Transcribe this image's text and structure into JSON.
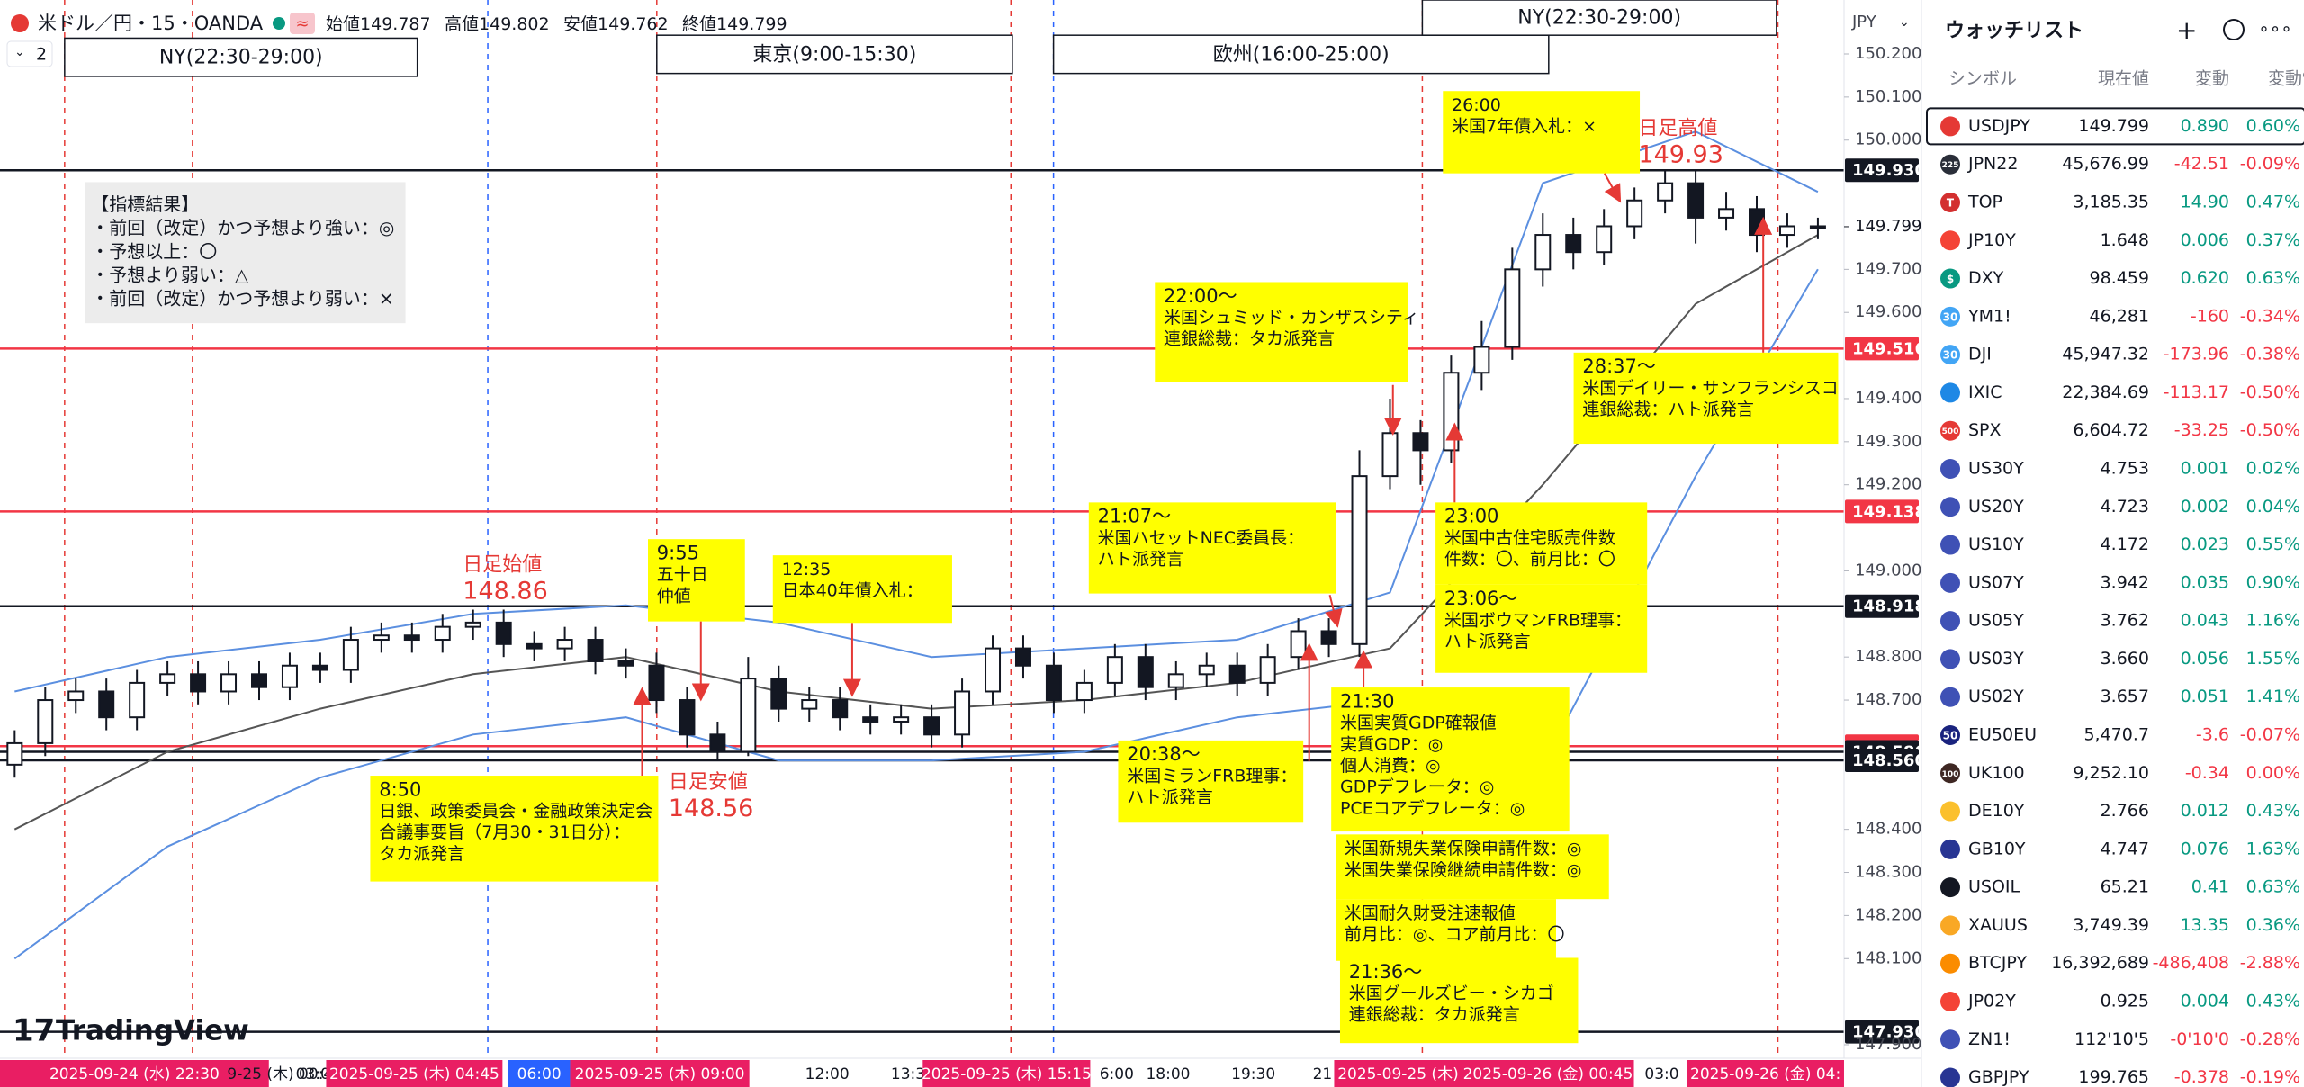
{
  "header": {
    "symbol": "米ドル／円・15・OANDA",
    "interval_count": "2",
    "ohlc": [
      {
        "label": "始値",
        "value": "149.787"
      },
      {
        "label": "高値",
        "value": "149.802"
      },
      {
        "label": "安値",
        "value": "149.762"
      },
      {
        "label": "終値",
        "value": "149.799"
      }
    ]
  },
  "sessions": [
    {
      "label": "NY(22:30-29:00)"
    },
    {
      "label": "東京(9:00-15:30)"
    },
    {
      "label": "欧州(16:00-25:00)"
    },
    {
      "label": "NY(22:30-29:00)"
    }
  ],
  "chart": {
    "currency": "JPY",
    "ylim": [
      147.9,
      150.2
    ],
    "yticks": [
      {
        "value": 150.2,
        "label": "150.200"
      },
      {
        "value": 150.1,
        "label": "150.100"
      },
      {
        "value": 150.0,
        "label": "150.000"
      },
      {
        "value": 149.7,
        "label": "149.700"
      },
      {
        "value": 149.6,
        "label": "149.600"
      },
      {
        "value": 149.4,
        "label": "149.400"
      },
      {
        "value": 149.3,
        "label": "149.300"
      },
      {
        "value": 149.2,
        "label": "149.200"
      },
      {
        "value": 149.0,
        "label": "149.000"
      },
      {
        "value": 148.8,
        "label": "148.800"
      },
      {
        "value": 148.7,
        "label": "148.700"
      },
      {
        "value": 148.4,
        "label": "148.400"
      },
      {
        "value": 148.3,
        "label": "148.300"
      },
      {
        "value": 148.2,
        "label": "148.200"
      },
      {
        "value": 148.1,
        "label": "148.100"
      },
      {
        "value": 147.9,
        "label": "147.900"
      }
    ],
    "last_price": {
      "value": 149.799,
      "label": "149.799"
    },
    "levels": [
      {
        "value": 149.93,
        "label": "149.930",
        "color": "#131722"
      },
      {
        "value": 149.516,
        "label": "149.516",
        "color": "#f23645"
      },
      {
        "value": 149.138,
        "label": "149.138",
        "color": "#f23645"
      },
      {
        "value": 148.918,
        "label": "148.918",
        "color": "#131722"
      },
      {
        "value": 148.593,
        "label": "148.593",
        "color": "#f23645"
      },
      {
        "value": 148.58,
        "label": "148.580",
        "color": "#131722"
      },
      {
        "value": 148.56,
        "label": "148.560",
        "color": "#131722"
      },
      {
        "value": 147.93,
        "label": "147.930",
        "color": "#131722"
      }
    ],
    "candles": [
      [
        148.55,
        148.63,
        148.52,
        148.6
      ],
      [
        148.6,
        148.73,
        148.57,
        148.7
      ],
      [
        148.7,
        148.75,
        148.67,
        148.72
      ],
      [
        148.72,
        148.75,
        148.63,
        148.66
      ],
      [
        148.66,
        148.77,
        148.63,
        148.74
      ],
      [
        148.74,
        148.79,
        148.71,
        148.76
      ],
      [
        148.76,
        148.79,
        148.69,
        148.72
      ],
      [
        148.72,
        148.79,
        148.69,
        148.76
      ],
      [
        148.76,
        148.79,
        148.7,
        148.73
      ],
      [
        148.73,
        148.81,
        148.7,
        148.78
      ],
      [
        148.78,
        148.81,
        148.74,
        148.77
      ],
      [
        148.77,
        148.87,
        148.74,
        148.84
      ],
      [
        148.84,
        148.88,
        148.81,
        148.85
      ],
      [
        148.85,
        148.88,
        148.81,
        148.84
      ],
      [
        148.84,
        148.9,
        148.81,
        148.87
      ],
      [
        148.87,
        148.91,
        148.84,
        148.88
      ],
      [
        148.88,
        148.91,
        148.8,
        148.83
      ],
      [
        148.83,
        148.86,
        148.79,
        148.82
      ],
      [
        148.82,
        148.87,
        148.79,
        148.84
      ],
      [
        148.84,
        148.87,
        148.76,
        148.79
      ],
      [
        148.79,
        148.82,
        148.75,
        148.78
      ],
      [
        148.78,
        148.81,
        148.67,
        148.7
      ],
      [
        148.7,
        148.73,
        148.59,
        148.62
      ],
      [
        148.62,
        148.65,
        148.56,
        148.58
      ],
      [
        148.58,
        148.8,
        148.57,
        148.75
      ],
      [
        148.75,
        148.78,
        148.65,
        148.68
      ],
      [
        148.68,
        148.73,
        148.65,
        148.7
      ],
      [
        148.7,
        148.73,
        148.63,
        148.66
      ],
      [
        148.66,
        148.69,
        148.62,
        148.65
      ],
      [
        148.65,
        148.69,
        148.62,
        148.66
      ],
      [
        148.66,
        148.69,
        148.59,
        148.62
      ],
      [
        148.62,
        148.75,
        148.59,
        148.72
      ],
      [
        148.72,
        148.85,
        148.69,
        148.82
      ],
      [
        148.82,
        148.85,
        148.75,
        148.78
      ],
      [
        148.78,
        148.81,
        148.67,
        148.7
      ],
      [
        148.7,
        148.77,
        148.67,
        148.74
      ],
      [
        148.74,
        148.83,
        148.71,
        148.8
      ],
      [
        148.8,
        148.83,
        148.7,
        148.73
      ],
      [
        148.73,
        148.79,
        148.7,
        148.76
      ],
      [
        148.76,
        148.81,
        148.73,
        148.78
      ],
      [
        148.78,
        148.81,
        148.71,
        148.74
      ],
      [
        148.74,
        148.83,
        148.71,
        148.8
      ],
      [
        148.8,
        148.89,
        148.77,
        148.86
      ],
      [
        148.86,
        148.89,
        148.8,
        148.83
      ],
      [
        148.83,
        149.28,
        148.8,
        149.22
      ],
      [
        149.22,
        149.4,
        149.19,
        149.32
      ],
      [
        149.32,
        149.35,
        149.2,
        149.28
      ],
      [
        149.28,
        149.5,
        149.25,
        149.46
      ],
      [
        149.46,
        149.58,
        149.42,
        149.52
      ],
      [
        149.52,
        149.75,
        149.49,
        149.7
      ],
      [
        149.7,
        149.83,
        149.66,
        149.78
      ],
      [
        149.78,
        149.82,
        149.7,
        149.74
      ],
      [
        149.74,
        149.84,
        149.71,
        149.8
      ],
      [
        149.8,
        149.89,
        149.77,
        149.86
      ],
      [
        149.86,
        149.93,
        149.83,
        149.9
      ],
      [
        149.9,
        149.93,
        149.76,
        149.82
      ],
      [
        149.82,
        149.88,
        149.79,
        149.84
      ],
      [
        149.84,
        149.87,
        149.74,
        149.78
      ],
      [
        149.78,
        149.83,
        149.75,
        149.8
      ],
      [
        149.8,
        149.82,
        149.77,
        149.8
      ]
    ],
    "overlay": {
      "index": [
        0,
        5,
        10,
        15,
        20,
        25,
        30,
        35,
        40,
        45,
        50,
        55,
        59
      ],
      "ma": [
        148.4,
        148.58,
        148.68,
        148.76,
        148.8,
        148.72,
        148.68,
        148.7,
        148.74,
        148.82,
        149.2,
        149.62,
        149.78
      ],
      "upper": [
        148.72,
        148.8,
        148.84,
        148.9,
        148.92,
        148.88,
        148.8,
        148.82,
        148.84,
        148.95,
        149.9,
        150.02,
        149.88
      ],
      "lower": [
        148.1,
        148.36,
        148.52,
        148.62,
        148.66,
        148.56,
        148.56,
        148.58,
        148.66,
        148.7,
        148.55,
        149.22,
        149.7
      ]
    },
    "time_labels": [
      {
        "text": "2025-09-24 (水)  22:30",
        "highlight": "#e91e63"
      },
      {
        "text": "9-25 (木)  00:45"
      },
      {
        "text": "03:0"
      },
      {
        "text": "2025-09-25 (木)  04:45",
        "highlight": "#e91e63"
      },
      {
        "text": "06:00",
        "highlight": "#2962ff"
      },
      {
        "text": "2025-09-25 (木)  09:00",
        "highlight": "#e91e63"
      },
      {
        "text": "12:00"
      },
      {
        "text": "13:3"
      },
      {
        "text": "2025-09-25 (木)  15:15",
        "highlight": "#e91e63"
      },
      {
        "text": "6:00"
      },
      {
        "text": "18:00"
      },
      {
        "text": "19:30"
      },
      {
        "text": "21"
      },
      {
        "text": "2025-09-25 (木)",
        "highlight": "#e91e63"
      },
      {
        "text": "2025-09-26 (金)  00:45",
        "highlight": "#e91e63"
      },
      {
        "text": "03:0"
      },
      {
        "text": "2025-09-26 (金)  04:",
        "highlight": "#e91e63"
      }
    ]
  },
  "day_marks": [
    {
      "title": "日足始値",
      "value": "148.86"
    },
    {
      "title": "日足安値",
      "value": "148.56"
    },
    {
      "title": "日足高値",
      "value": "149.93"
    }
  ],
  "legend": {
    "title": "【指標結果】",
    "items": [
      "・前回（改定）かつ予想より強い：◎",
      "・予想以上：〇",
      "・予想より弱い：△",
      "・前回（改定）かつ予想より弱い：×"
    ]
  },
  "annotations": [
    {
      "lines": [
        "26:00",
        "米国7年債入札：×"
      ]
    },
    {
      "lines": [
        "22:00～",
        "米国シュミッド・カンザスシティ",
        "連銀総裁：タカ派発言"
      ]
    },
    {
      "lines": [
        "28:37～",
        "米国デイリー・サンフランシスコ",
        "連銀総裁：ハト派発言"
      ]
    },
    {
      "lines": [
        "21:07～",
        "米国ハセットNEC委員長：",
        "ハト派発言"
      ]
    },
    {
      "lines": [
        "23:00",
        "米国中古住宅販売件数",
        "件数：〇、前月比：〇"
      ]
    },
    {
      "lines": [
        "23:06～",
        "米国ボウマンFRB理事：",
        "ハト派発言"
      ]
    },
    {
      "lines": [
        "9:55",
        "五十日",
        "仲値"
      ]
    },
    {
      "lines": [
        "12:35",
        "日本40年債入札："
      ]
    },
    {
      "lines": [
        "8:50",
        "日銀、政策委員会・金融政策決定会",
        "合議事要旨（7月30・31日分）：",
        "タカ派発言"
      ]
    },
    {
      "lines": [
        "20:38～",
        "米国ミランFRB理事：",
        "ハト派発言"
      ]
    },
    {
      "lines": [
        "21:30",
        "米国実質GDP確報値",
        "実質GDP：◎",
        "個人消費：◎",
        "GDPデフレータ：◎",
        "PCEコアデフレータ：◎"
      ]
    },
    {
      "lines": [
        "米国新規失業保険申請件数：◎",
        "米国失業保険継続申請件数：◎"
      ]
    },
    {
      "lines": [
        "米国耐久財受注速報値",
        "前月比：◎、コア前月比：〇"
      ]
    },
    {
      "lines": [
        "21:36～",
        "米国グールズビー・シカゴ",
        "連銀総裁：タカ派発言"
      ]
    }
  ],
  "logo": "TradingView",
  "watchlist": {
    "title": "ウォッチリスト",
    "columns": [
      "シンボル",
      "現在値",
      "変動",
      "変動%"
    ],
    "rows": [
      {
        "icon": "#e53935",
        "symbol": "USDJPY",
        "price": "149.799",
        "change": "0.890",
        "pct": "0.60%",
        "color": "#089981"
      },
      {
        "icon": "#2a2e39",
        "icon_text": "225",
        "symbol": "JPN22",
        "price": "45,676.99",
        "change": "-42.51",
        "pct": "-0.09%",
        "color": "#f23645"
      },
      {
        "icon": "#d32f2f",
        "icon_text": "T",
        "symbol": "TOP",
        "price": "3,185.35",
        "change": "14.90",
        "pct": "0.47%",
        "color": "#089981"
      },
      {
        "icon": "#f44336",
        "symbol": "JP10Y",
        "price": "1.648",
        "change": "0.006",
        "pct": "0.37%",
        "color": "#089981"
      },
      {
        "icon": "#089981",
        "icon_text": "$",
        "symbol": "DXY",
        "price": "98.459",
        "change": "0.620",
        "pct": "0.63%",
        "color": "#089981"
      },
      {
        "icon": "#42a5f5",
        "icon_text": "30",
        "symbol": "YM1!",
        "price": "46,281",
        "change": "-160",
        "pct": "-0.34%",
        "color": "#f23645"
      },
      {
        "icon": "#42a5f5",
        "icon_text": "30",
        "symbol": "DJI",
        "price": "45,947.32",
        "change": "-173.96",
        "pct": "-0.38%",
        "color": "#f23645"
      },
      {
        "icon": "#1e88e5",
        "symbol": "IXIC",
        "price": "22,384.69",
        "change": "-113.17",
        "pct": "-0.50%",
        "color": "#f23645"
      },
      {
        "icon": "#e53935",
        "icon_text": "500",
        "symbol": "SPX",
        "price": "6,604.72",
        "change": "-33.25",
        "pct": "-0.50%",
        "color": "#f23645"
      },
      {
        "icon": "#3f51b5",
        "symbol": "US30Y",
        "price": "4.753",
        "change": "0.001",
        "pct": "0.02%",
        "color": "#089981"
      },
      {
        "icon": "#3f51b5",
        "symbol": "US20Y",
        "price": "4.723",
        "change": "0.002",
        "pct": "0.04%",
        "color": "#089981"
      },
      {
        "icon": "#3f51b5",
        "symbol": "US10Y",
        "price": "4.172",
        "change": "0.023",
        "pct": "0.55%",
        "color": "#089981"
      },
      {
        "icon": "#3f51b5",
        "symbol": "US07Y",
        "price": "3.942",
        "change": "0.035",
        "pct": "0.90%",
        "color": "#089981"
      },
      {
        "icon": "#3f51b5",
        "symbol": "US05Y",
        "price": "3.762",
        "change": "0.043",
        "pct": "1.16%",
        "color": "#089981"
      },
      {
        "icon": "#3f51b5",
        "symbol": "US03Y",
        "price": "3.660",
        "change": "0.056",
        "pct": "1.55%",
        "color": "#089981"
      },
      {
        "icon": "#3f51b5",
        "symbol": "US02Y",
        "price": "3.657",
        "change": "0.051",
        "pct": "1.41%",
        "color": "#089981"
      },
      {
        "icon": "#1a237e",
        "icon_text": "50",
        "symbol": "EU50EU",
        "price": "5,470.7",
        "change": "-3.6",
        "pct": "-0.07%",
        "color": "#f23645"
      },
      {
        "icon": "#3e2723",
        "icon_text": "100",
        "symbol": "UK100",
        "price": "9,252.10",
        "change": "-0.34",
        "pct": "0.00%",
        "color": "#f23645"
      },
      {
        "icon": "#fbc02d",
        "symbol": "DE10Y",
        "price": "2.766",
        "change": "0.012",
        "pct": "0.43%",
        "color": "#089981"
      },
      {
        "icon": "#283593",
        "symbol": "GB10Y",
        "price": "4.747",
        "change": "0.076",
        "pct": "1.63%",
        "color": "#089981"
      },
      {
        "icon": "#131722",
        "symbol": "USOIL",
        "price": "65.21",
        "change": "0.41",
        "pct": "0.63%",
        "color": "#089981"
      },
      {
        "icon": "#f9a825",
        "symbol": "XAUUS",
        "price": "3,749.39",
        "change": "13.35",
        "pct": "0.36%",
        "color": "#089981"
      },
      {
        "icon": "#fb8c00",
        "symbol": "BTCJPY",
        "price": "16,392,689",
        "change": "-486,408",
        "pct": "-2.88%",
        "color": "#f23645"
      },
      {
        "icon": "#f44336",
        "symbol": "JP02Y",
        "price": "0.925",
        "change": "0.004",
        "pct": "0.43%",
        "color": "#089981"
      },
      {
        "icon": "#3f51b5",
        "symbol": "ZN1!",
        "price": "112'10'5",
        "change": "-0'10'0",
        "pct": "-0.28%",
        "color": "#f23645"
      },
      {
        "icon": "#283593",
        "symbol": "GBPJPY",
        "price": "199.765",
        "change": "-0.378",
        "pct": "-0.19%",
        "color": "#f23645"
      }
    ]
  }
}
